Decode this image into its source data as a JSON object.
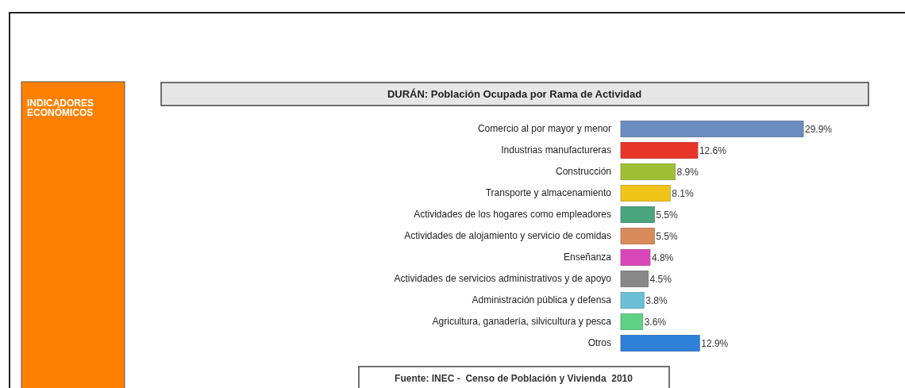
{
  "chart_data": {
    "type": "bar",
    "orientation": "horizontal",
    "title": "DURÁN: Población Ocupada por Rama de Actividad",
    "categories": [
      "Comercio al por mayor y menor",
      "Industrias manufactureras",
      "Construcción",
      "Transporte y almacenamiento",
      "Actividades de los hogares como empleadores",
      "Actividades de alojamiento y servicio de comidas",
      "Enseñanza",
      "Actividades de servicios administrativos y de apoyo",
      "Administración pública y defensa",
      "Agricultura, ganadería, silvicultura y pesca",
      "Otros"
    ],
    "values": [
      29.9,
      12.6,
      8.9,
      8.1,
      5.5,
      5.5,
      4.8,
      4.5,
      3.8,
      3.6,
      12.9
    ],
    "value_labels": [
      "29.9%",
      "12.6%",
      "8.9%",
      "8.1%",
      "5.5%",
      "5.5%",
      "4.8%",
      "4.5%",
      "3.8%",
      "3.6%",
      "12.9%"
    ],
    "colors": [
      "#6b8cbf",
      "#e8352a",
      "#9ebf35",
      "#f0c419",
      "#48a57e",
      "#d98a5a",
      "#d948b8",
      "#888888",
      "#6bbfd6",
      "#5fd185",
      "#2f80d9"
    ],
    "annotations": [
      "INDICADORES ECONÓMICOS",
      "Fuente: INEC -  Censo de Población y Vivienda  2010"
    ]
  }
}
